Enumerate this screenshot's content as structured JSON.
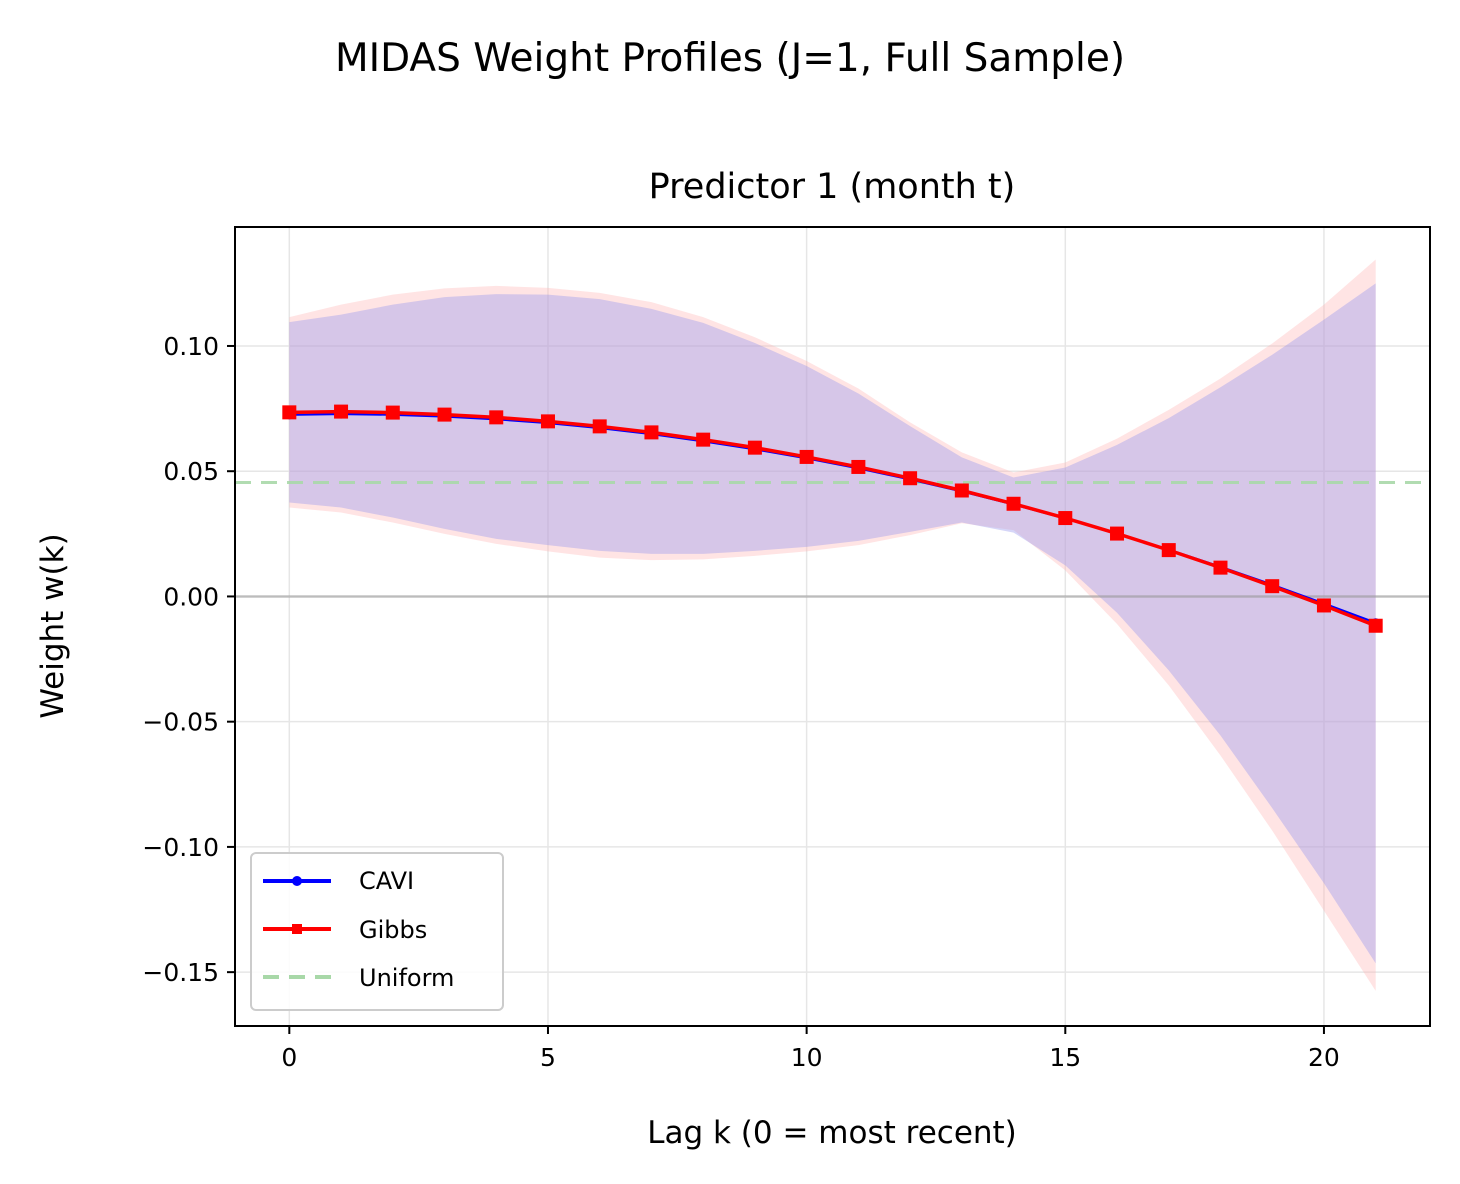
{
  "chart_data": {
    "type": "line",
    "suptitle": "MIDAS Weight Profiles (J=1, Full Sample)",
    "title": "Predictor 1 (month t)",
    "xlabel": "Lag k (0 = most recent)",
    "ylabel": "Weight w(k)",
    "xlim": [
      -1.05,
      22.05
    ],
    "ylim": [
      -0.1715,
      0.1475
    ],
    "xticks": [
      0,
      5,
      10,
      15,
      20
    ],
    "xtick_labels": [
      "0",
      "5",
      "10",
      "15",
      "20"
    ],
    "yticks": [
      -0.15,
      -0.1,
      -0.05,
      0.0,
      0.05,
      0.1
    ],
    "ytick_labels": [
      "−0.15",
      "−0.10",
      "−0.05",
      "0.00",
      "0.05",
      "0.10"
    ],
    "grid": true,
    "legend_position": "lower-left",
    "x": [
      0,
      1,
      2,
      3,
      4,
      5,
      6,
      7,
      8,
      9,
      10,
      11,
      12,
      13,
      14,
      15,
      16,
      17,
      18,
      19,
      20,
      21
    ],
    "series": [
      {
        "name": "CAVI",
        "color": "#0000ff",
        "marker": "circle",
        "values": [
          0.0725,
          0.0728,
          0.0725,
          0.0718,
          0.0707,
          0.0692,
          0.0672,
          0.0648,
          0.0619,
          0.0587,
          0.0551,
          0.0511,
          0.0467,
          0.0419,
          0.0367,
          0.0311,
          0.0251,
          0.0187,
          0.0119,
          0.0047,
          -0.0028,
          -0.0105
        ]
      },
      {
        "name": "Gibbs",
        "color": "#ff0000",
        "marker": "square",
        "values": [
          0.0735,
          0.0738,
          0.0734,
          0.0726,
          0.0715,
          0.0699,
          0.0679,
          0.0655,
          0.0626,
          0.0594,
          0.0557,
          0.0517,
          0.0472,
          0.0423,
          0.037,
          0.0313,
          0.0251,
          0.0185,
          0.0115,
          0.0041,
          -0.0036,
          -0.0117
        ]
      },
      {
        "name": "Uniform",
        "color": "#a8d8a8",
        "style": "dashed",
        "value": 0.0455
      }
    ],
    "bands": [
      {
        "name": "Gibbs interval",
        "color": "#ffb3b3",
        "lower": [
          0.0355,
          0.0335,
          0.0295,
          0.025,
          0.021,
          0.018,
          0.0155,
          0.0145,
          0.0148,
          0.0162,
          0.018,
          0.0205,
          0.0245,
          0.0292,
          0.0265,
          0.0104,
          -0.011,
          -0.0355,
          -0.0635,
          -0.0935,
          -0.1255,
          -0.1575
        ],
        "upper": [
          0.1115,
          0.1165,
          0.1205,
          0.123,
          0.124,
          0.1232,
          0.1212,
          0.1175,
          0.1115,
          0.1035,
          0.094,
          0.083,
          0.0695,
          0.0575,
          0.0495,
          0.0535,
          0.063,
          0.0745,
          0.087,
          0.101,
          0.1165,
          0.1345
        ]
      },
      {
        "name": "CAVI interval",
        "color": "#9999ee",
        "lower": [
          0.0375,
          0.0355,
          0.0315,
          0.027,
          0.023,
          0.0205,
          0.0182,
          0.017,
          0.017,
          0.0182,
          0.0198,
          0.0222,
          0.0258,
          0.0295,
          0.0255,
          0.0124,
          -0.0065,
          -0.0295,
          -0.0555,
          -0.0845,
          -0.1145,
          -0.1465
        ],
        "upper": [
          0.1095,
          0.1125,
          0.1165,
          0.1195,
          0.1207,
          0.1205,
          0.1187,
          0.1148,
          0.1092,
          0.1012,
          0.092,
          0.081,
          0.068,
          0.0555,
          0.0475,
          0.0515,
          0.0605,
          0.0712,
          0.0835,
          0.0965,
          0.1105,
          0.125
        ]
      }
    ]
  }
}
